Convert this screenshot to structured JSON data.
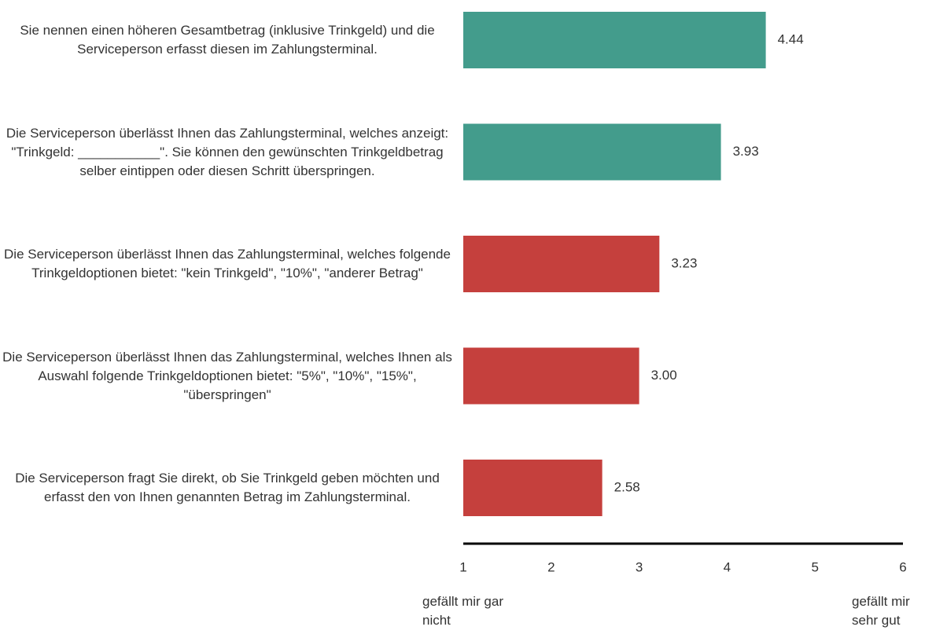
{
  "chart_data": {
    "type": "bar",
    "orientation": "horizontal",
    "categories": [
      "Sie nennen einen höheren Gesamtbetrag (inklusive Trinkgeld) und die Serviceperson erfasst diesen im Zahlungsterminal.",
      "Die Serviceperson überlässt Ihnen das Zahlungsterminal, welches anzeigt: \"Trinkgeld: ___________\". Sie können den gewünschten Trinkgeldbetrag selber eintippen oder diesen Schritt überspringen.",
      "Die Serviceperson überlässt Ihnen das Zahlungsterminal, welches folgende Trinkgeldoptionen bietet: \"kein Trinkgeld\", \"10%\", \"anderer Betrag\"",
      "Die Serviceperson überlässt Ihnen das Zahlungsterminal, welches Ihnen als Auswahl folgende Trinkgeldoptionen bietet: \"5%\", \"10%\", \"15%\", \"überspringen\"",
      "Die Serviceperson fragt Sie direkt, ob Sie Trinkgeld geben möchten und erfasst den von Ihnen genannten Betrag im Zahlungsterminal."
    ],
    "values": [
      4.44,
      3.93,
      3.23,
      3.0,
      2.58
    ],
    "value_labels": [
      "4.44",
      "3.93",
      "3.23",
      "3.00",
      "2.58"
    ],
    "colors": [
      "#439c8c",
      "#439c8c",
      "#c5403d",
      "#c5403d",
      "#c5403d"
    ],
    "xlim": [
      1,
      6
    ],
    "xticks": [
      1,
      2,
      3,
      4,
      5,
      6
    ],
    "grid": false,
    "annotations": [
      "gefällt mir gar nicht",
      "gefällt mir sehr gut"
    ]
  }
}
